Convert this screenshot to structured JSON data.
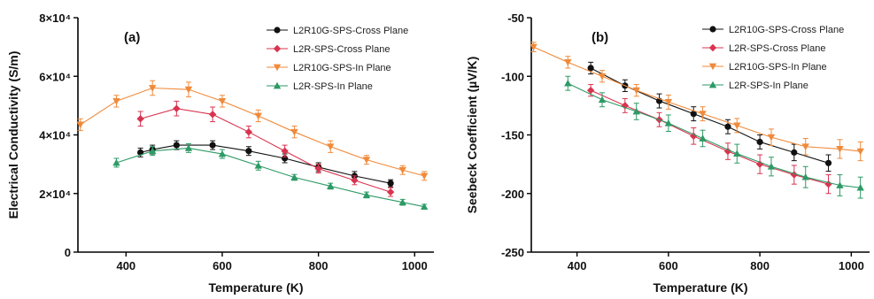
{
  "chart_data": [
    {
      "type": "line",
      "panel_label": "(a)",
      "xlabel": "Temperature (K)",
      "ylabel": "Electrical  Conductivity (S/m)",
      "xlim": [
        300,
        1040
      ],
      "ylim": [
        0,
        80000
      ],
      "x_ticks": [
        400,
        600,
        800,
        1000
      ],
      "y_ticks": [
        {
          "value": 0,
          "label": "0"
        },
        {
          "value": 20000,
          "label": "2×10⁴"
        },
        {
          "value": 40000,
          "label": "4×10⁴"
        },
        {
          "value": 60000,
          "label": "6×10⁴"
        },
        {
          "value": 80000,
          "label": "8×10⁴"
        }
      ],
      "legend_position": "top-right",
      "series": [
        {
          "name": "L2R10G-SPS-Cross Plane",
          "color": "#111111",
          "marker": "circle",
          "x": [
            430,
            455,
            505,
            580,
            655,
            730,
            800,
            875,
            950
          ],
          "y": [
            34000,
            35000,
            36500,
            36500,
            34500,
            32000,
            29000,
            26000,
            23500
          ],
          "err": [
            1500,
            1500,
            1500,
            1500,
            1500,
            1500,
            1500,
            1500,
            1200
          ]
        },
        {
          "name": "L2R-SPS-Cross Plane",
          "color": "#d8344f",
          "marker": "diamond",
          "x": [
            430,
            505,
            580,
            655,
            730,
            800,
            875,
            950
          ],
          "y": [
            45500,
            49000,
            47000,
            41000,
            34500,
            28500,
            24500,
            20500
          ],
          "err": [
            2500,
            2500,
            2500,
            2000,
            2000,
            1500,
            1500,
            1500
          ]
        },
        {
          "name": "L2R10G-SPS-In Plane",
          "color": "#f08a3a",
          "marker": "triangle-down",
          "x": [
            305,
            380,
            455,
            530,
            600,
            675,
            750,
            825,
            900,
            975,
            1020
          ],
          "y": [
            43500,
            51500,
            56000,
            55500,
            51500,
            46500,
            41000,
            36000,
            31500,
            28000,
            26000
          ],
          "err": [
            2000,
            2000,
            2500,
            2500,
            2000,
            2000,
            2000,
            2000,
            1500,
            1500,
            1500
          ]
        },
        {
          "name": "L2R-SPS-In Plane",
          "color": "#2e9a66",
          "marker": "triangle-up",
          "x": [
            380,
            455,
            530,
            600,
            675,
            750,
            825,
            900,
            975,
            1020
          ],
          "y": [
            30500,
            34500,
            35500,
            33500,
            29500,
            25500,
            22500,
            19500,
            17000,
            15500
          ],
          "err": [
            1500,
            1500,
            1500,
            1500,
            1500,
            1000,
            1000,
            1000,
            1000,
            800
          ]
        }
      ]
    },
    {
      "type": "line",
      "panel_label": "(b)",
      "xlabel": "Temperature (K)",
      "ylabel": "Seebeck Coefficient (µV/K)",
      "xlim": [
        300,
        1040
      ],
      "ylim": [
        -250,
        -50
      ],
      "x_ticks": [
        400,
        600,
        800,
        1000
      ],
      "y_ticks": [
        {
          "value": -250,
          "label": "-250"
        },
        {
          "value": -200,
          "label": "-200"
        },
        {
          "value": -150,
          "label": "-150"
        },
        {
          "value": -100,
          "label": "-100"
        },
        {
          "value": -50,
          "label": "-50"
        }
      ],
      "legend_position": "top-right",
      "series": [
        {
          "name": "L2R10G-SPS-Cross Plane",
          "color": "#111111",
          "marker": "circle",
          "x": [
            430,
            505,
            580,
            655,
            730,
            800,
            875,
            950
          ],
          "y": [
            -93,
            -108,
            -121,
            -132,
            -143,
            -156,
            -165,
            -174
          ],
          "err": [
            5,
            5,
            6,
            6,
            6,
            6,
            7,
            7
          ]
        },
        {
          "name": "L2R-SPS-Cross Plane",
          "color": "#d8344f",
          "marker": "diamond",
          "x": [
            430,
            505,
            580,
            655,
            730,
            800,
            875,
            950
          ],
          "y": [
            -112,
            -125,
            -137,
            -151,
            -164,
            -175,
            -184,
            -192
          ],
          "err": [
            5,
            6,
            6,
            7,
            7,
            8,
            8,
            8
          ]
        },
        {
          "name": "L2R10G-SPS-In Plane",
          "color": "#f08a3a",
          "marker": "triangle-down",
          "x": [
            305,
            380,
            455,
            530,
            600,
            675,
            750,
            825,
            900,
            975,
            1020
          ],
          "y": [
            -75,
            -88,
            -100,
            -112,
            -122,
            -132,
            -142,
            -152,
            -160,
            -162,
            -164
          ],
          "err": [
            4,
            5,
            5,
            5,
            6,
            6,
            6,
            7,
            7,
            8,
            8
          ]
        },
        {
          "name": "L2R-SPS-In Plane",
          "color": "#2e9a66",
          "marker": "triangle-up",
          "x": [
            380,
            455,
            530,
            600,
            675,
            750,
            825,
            900,
            975,
            1020
          ],
          "y": [
            -106,
            -120,
            -130,
            -140,
            -153,
            -166,
            -177,
            -186,
            -193,
            -195
          ],
          "err": [
            6,
            6,
            7,
            7,
            7,
            8,
            8,
            9,
            9,
            9
          ]
        }
      ]
    }
  ]
}
